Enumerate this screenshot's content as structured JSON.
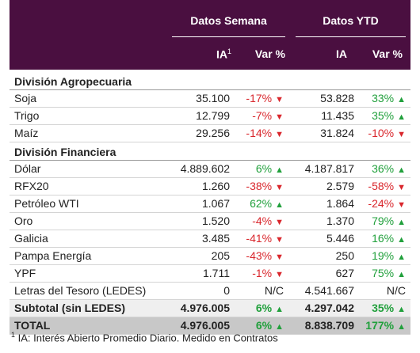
{
  "table": {
    "groups": [
      "Datos Semana",
      "Datos YTD"
    ],
    "columns": [
      {
        "label": "IA",
        "note": "1"
      },
      {
        "label": "Var %"
      },
      {
        "label": "IA"
      },
      {
        "label": "Var %"
      }
    ],
    "sections": [
      {
        "title": "División Agropecuaria",
        "rows": [
          [
            "Soja",
            "35.100",
            "-17%",
            "53.828",
            "33%"
          ],
          [
            "Trigo",
            "12.799",
            "-7%",
            "11.435",
            "35%"
          ],
          [
            "Maíz",
            "29.256",
            "-14%",
            "31.824",
            "-10%"
          ]
        ]
      },
      {
        "title": "División Financiera",
        "rows": [
          [
            "Dólar",
            "4.889.602",
            "6%",
            "4.187.817",
            "36%"
          ],
          [
            "RFX20",
            "1.260",
            "-38%",
            "2.579",
            "-58%"
          ],
          [
            "Petróleo WTI",
            "1.067",
            "62%",
            "1.864",
            "-24%"
          ],
          [
            "Oro",
            "1.520",
            "-4%",
            "1.370",
            "79%"
          ],
          [
            "Galicia",
            "3.485",
            "-41%",
            "5.446",
            "16%"
          ],
          [
            "Pampa Energía",
            "205",
            "-43%",
            "250",
            "19%"
          ],
          [
            "YPF",
            "1.711",
            "-1%",
            "627",
            "75%"
          ],
          [
            "Letras del Tesoro (LEDES)",
            "0",
            "N/C",
            "4.541.667",
            "N/C"
          ]
        ]
      }
    ],
    "subtotal": [
      "Subtotal (sin LEDES)",
      "4.976.005",
      "6%",
      "4.297.042",
      "35%"
    ],
    "total": [
      "TOTAL",
      "4.976.005",
      "6%",
      "8.838.709",
      "177%"
    ],
    "footnote": {
      "mark": "1",
      "text": "IA: Interés Abierto Promedio Diario. Medido en Contratos"
    }
  }
}
